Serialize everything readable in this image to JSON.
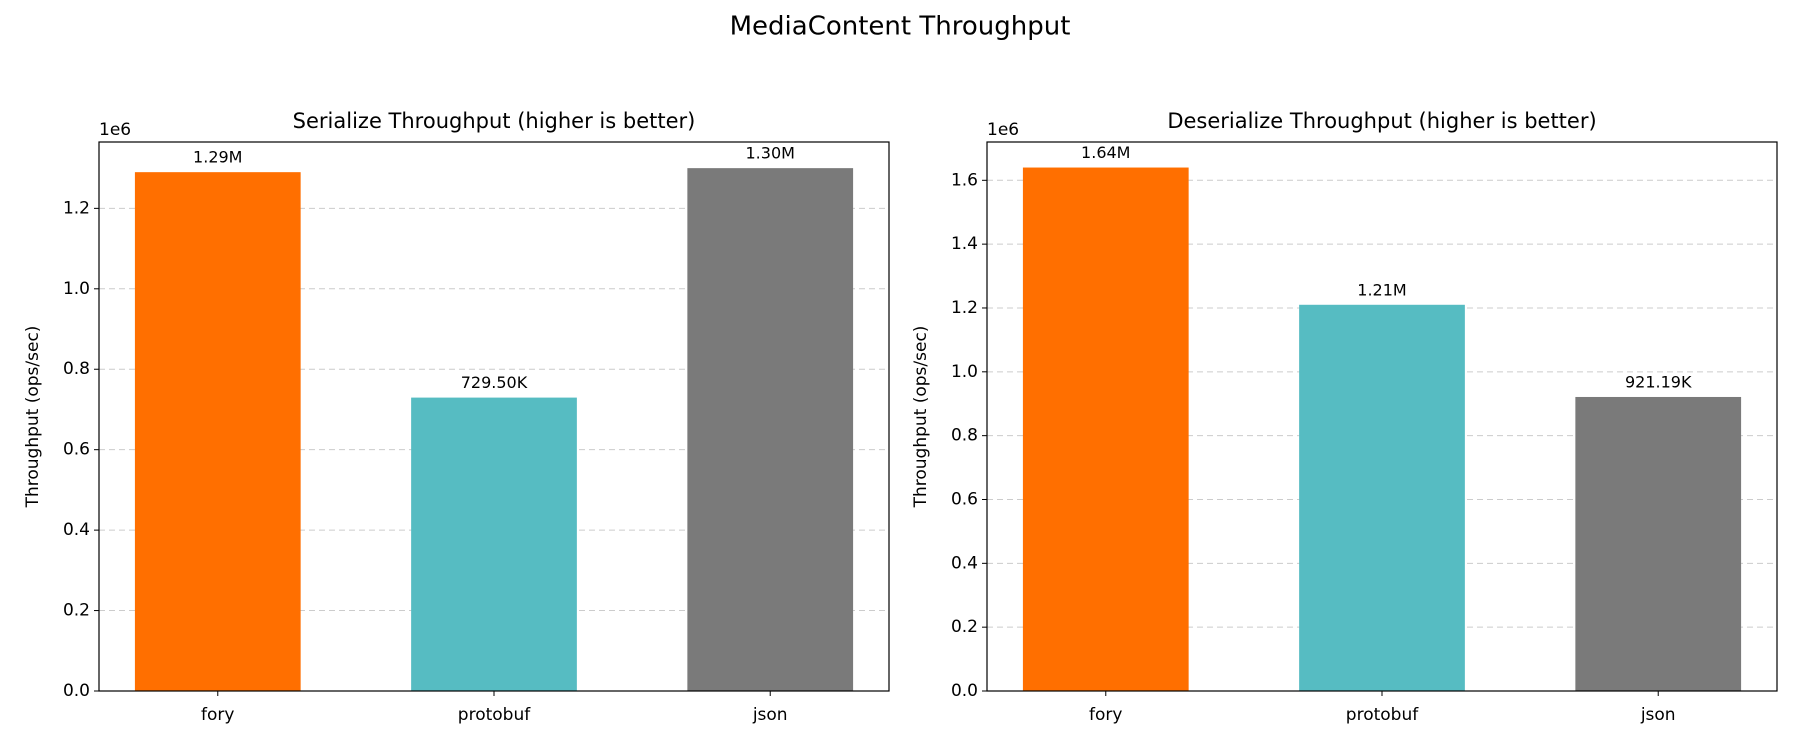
{
  "title": "MediaContent Throughput",
  "chart_data": [
    {
      "type": "bar",
      "title": "Serialize Throughput (higher is better)",
      "y_label": "Throughput (ops/sec)",
      "y_offset_label": "1e6",
      "categories": [
        "fory",
        "protobuf",
        "json"
      ],
      "values": [
        1.29,
        0.7295,
        1.3
      ],
      "value_labels": [
        "1.29M",
        "729.50K",
        "1.30M"
      ],
      "colors": [
        "#ff6f00",
        "#56bcc2",
        "#7a7a7a"
      ],
      "ylim": [
        0,
        1.365
      ],
      "yticks": [
        {
          "value": 0,
          "label": "0.0"
        },
        {
          "value": 0.2,
          "label": "0.2"
        },
        {
          "value": 0.4,
          "label": "0.4"
        },
        {
          "value": 0.6,
          "label": "0.6"
        },
        {
          "value": 0.8,
          "label": "0.8"
        },
        {
          "value": 1.0,
          "label": "1.0"
        },
        {
          "value": 1.2,
          "label": "1.2"
        }
      ],
      "grid": true
    },
    {
      "type": "bar",
      "title": "Deserialize Throughput (higher is better)",
      "y_label": "Throughput (ops/sec)",
      "y_offset_label": "1e6",
      "categories": [
        "fory",
        "protobuf",
        "json"
      ],
      "values": [
        1.64,
        1.21,
        0.92119
      ],
      "value_labels": [
        "1.64M",
        "1.21M",
        "921.19K"
      ],
      "colors": [
        "#ff6f00",
        "#56bcc2",
        "#7a7a7a"
      ],
      "ylim": [
        0,
        1.72
      ],
      "yticks": [
        {
          "value": 0,
          "label": "0.0"
        },
        {
          "value": 0.2,
          "label": "0.2"
        },
        {
          "value": 0.4,
          "label": "0.4"
        },
        {
          "value": 0.6,
          "label": "0.6"
        },
        {
          "value": 0.8,
          "label": "0.8"
        },
        {
          "value": 1.0,
          "label": "1.0"
        },
        {
          "value": 1.2,
          "label": "1.2"
        },
        {
          "value": 1.4,
          "label": "1.4"
        },
        {
          "value": 1.6,
          "label": "1.6"
        }
      ],
      "grid": true
    }
  ]
}
